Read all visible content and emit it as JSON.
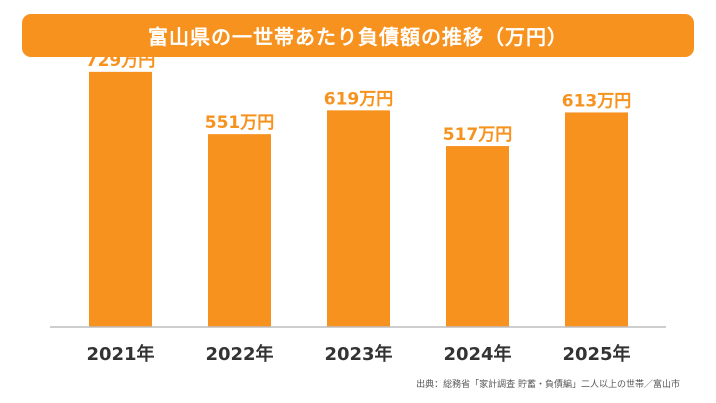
{
  "title": "富山県の一世帯あたり負債額の推移（万円）",
  "source": "出典：総務省「家計調査 貯蓄・負債編」二人以上の世帯／富山市",
  "colors": {
    "bar": "#f7921e",
    "banner": "#f7921e",
    "axis": "#bdbdbd",
    "text": "#333333",
    "label": "#f7921e"
  },
  "chart_data": {
    "type": "bar",
    "title": "富山県の一世帯あたり負債額の推移（万円）",
    "categories": [
      "2021年",
      "2022年",
      "2023年",
      "2024年",
      "2025年"
    ],
    "values": [
      729,
      551,
      619,
      517,
      613
    ],
    "data_labels": [
      "729万円",
      "551万円",
      "619万円",
      "517万円",
      "613万円"
    ],
    "unit": "万円",
    "ylim": [
      0,
      800
    ],
    "grid": false,
    "legend": "none"
  }
}
